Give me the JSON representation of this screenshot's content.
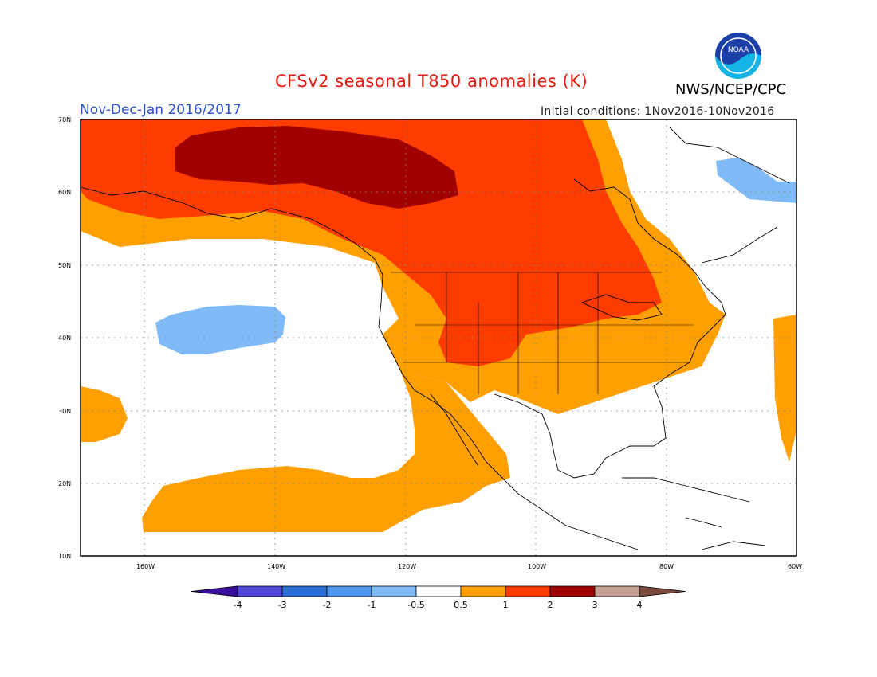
{
  "header": {
    "title": "CFSv2 seasonal T850 anomalies (K)",
    "agency": "NWS/NCEP/CPC",
    "period": "Nov-Dec-Jan 2016/2017",
    "initial_conditions": "Initial conditions: 1Nov2016-10Nov2016",
    "logo_text": "NOAA"
  },
  "axes": {
    "lat_ticks": [
      "70N",
      "60N",
      "50N",
      "40N",
      "30N",
      "20N",
      "10N"
    ],
    "lon_ticks": [
      "160W",
      "140W",
      "120W",
      "100W",
      "80W",
      "60W"
    ]
  },
  "colorbar": {
    "labels": [
      "-4",
      "-3",
      "-2",
      "-1",
      "-0.5",
      "0.5",
      "1",
      "2",
      "3",
      "4"
    ],
    "colors": [
      "#3a0fa0",
      "#4e47d8",
      "#2b6dd6",
      "#4f97ec",
      "#7fbaf6",
      "#ffffff",
      "#ffa000",
      "#ff3c00",
      "#a10000",
      "#c59f92",
      "#7a4a3c"
    ]
  },
  "legend_colors": {
    "light_blue": "#7fbaf6",
    "orange": "#ffa000",
    "red_orange": "#ff3c00",
    "dark_red": "#a10000"
  }
}
